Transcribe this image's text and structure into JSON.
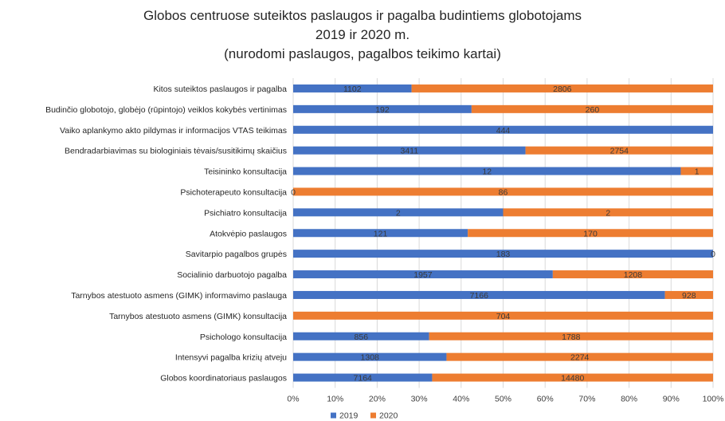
{
  "chart_data": {
    "type": "bar",
    "stacked": "percent",
    "orientation": "horizontal",
    "title_lines": [
      "Globos centruose suteiktos paslaugos ir pagalba budintiems globotojams",
      "2019 ir 2020 m.",
      "(nurodomi paslaugos, pagalbos teikimo kartai)"
    ],
    "categories": [
      "Kitos suteiktos paslaugos ir pagalba",
      "Budinčio globotojo, globėjo (rūpintojo) veiklos kokybės vertinimas",
      "Vaiko aplankymo akto pildymas ir informacijos VTAS teikimas",
      "Bendradarbiavimas su biologiniais tėvais/susitikimų skaičius",
      "Teisininko konsultacija",
      "Psichoterapeuto konsultacija",
      "Psichiatro konsultacija",
      "Atokvėpio paslaugos",
      "Savitarpio pagalbos grupės",
      "Socialinio darbuotojo pagalba",
      "Tarnybos atestuoto asmens (GIMK) informavimo paslauga",
      "Tarnybos atestuoto asmens (GIMK) konsultacija",
      "Psichologo konsultacija",
      "Intensyvi pagalba krizių atveju",
      "Globos koordinatoriaus paslaugos"
    ],
    "series": [
      {
        "name": "2019",
        "color": "#4472C4",
        "values": [
          1102,
          192,
          444,
          3411,
          12,
          0,
          2,
          121,
          183,
          1957,
          7166,
          null,
          856,
          1308,
          7164
        ],
        "labels": [
          "1102",
          "192",
          "444",
          "3411",
          "12",
          "0",
          "2",
          "121",
          "183",
          "1957",
          "7166",
          "",
          "856",
          "1308",
          "7164"
        ]
      },
      {
        "name": "2020",
        "color": "#ED7D31",
        "values": [
          2806,
          260,
          null,
          2754,
          1,
          86,
          2,
          170,
          0,
          1208,
          928,
          704,
          1788,
          2274,
          14480
        ],
        "labels": [
          "2806",
          "260",
          "",
          "2754",
          "1",
          "86",
          "2",
          "170",
          "0",
          "1208",
          "928",
          "704",
          "1788",
          "2274",
          "14480"
        ]
      }
    ],
    "xaxis": {
      "ticks": [
        "0%",
        "10%",
        "20%",
        "30%",
        "40%",
        "50%",
        "60%",
        "70%",
        "80%",
        "90%",
        "100%"
      ],
      "range": [
        0,
        100
      ],
      "unit": "%"
    },
    "grid": true,
    "legend_position": "bottom"
  }
}
